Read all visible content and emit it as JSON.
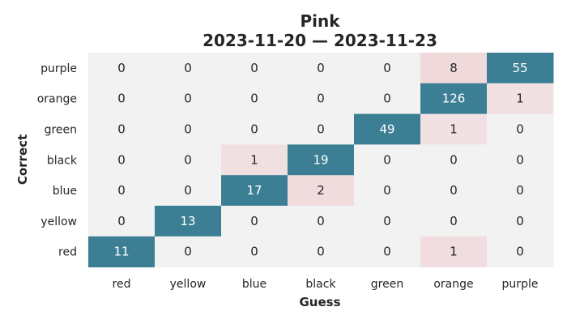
{
  "chart_data": {
    "type": "heatmap",
    "title": "Pink",
    "subtitle": "2023-11-20 — 2023-11-23",
    "xlabel": "Guess",
    "ylabel": "Correct",
    "x_categories": [
      "red",
      "yellow",
      "blue",
      "black",
      "green",
      "orange",
      "purple"
    ],
    "y_categories": [
      "purple",
      "orange",
      "green",
      "black",
      "blue",
      "yellow",
      "red"
    ],
    "values": [
      [
        0,
        0,
        0,
        0,
        0,
        8,
        55
      ],
      [
        0,
        0,
        0,
        0,
        0,
        126,
        1
      ],
      [
        0,
        0,
        0,
        0,
        49,
        1,
        0
      ],
      [
        0,
        0,
        1,
        19,
        0,
        0,
        0
      ],
      [
        0,
        0,
        17,
        2,
        0,
        0,
        0
      ],
      [
        0,
        13,
        0,
        0,
        0,
        0,
        0
      ],
      [
        11,
        0,
        0,
        0,
        0,
        1,
        0
      ]
    ],
    "colors": {
      "zero": "#f2f2f2",
      "high_blue": "#3c7f95",
      "high_red": "#de3c49",
      "light_blue": "#dfe6e9",
      "light_red": "#f1e1e2"
    },
    "grid": false
  }
}
